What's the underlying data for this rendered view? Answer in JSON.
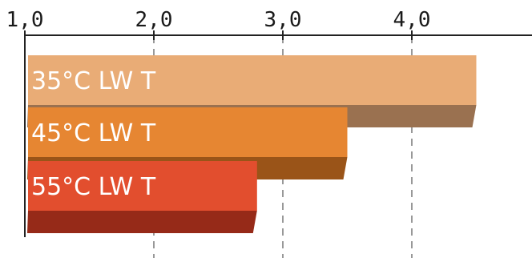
{
  "chart_data": {
    "type": "bar",
    "orientation": "horizontal",
    "style": "3d",
    "grid": "vertical dashed",
    "xlim": [
      1.0,
      4.85
    ],
    "x_ticks": [
      {
        "value": 1.0,
        "label": "1,0"
      },
      {
        "value": 2.0,
        "label": "2,0"
      },
      {
        "value": 3.0,
        "label": "3,0"
      },
      {
        "value": 4.0,
        "label": "4,0"
      }
    ],
    "categories": [
      "35°C   LW T",
      "45°C   LW T",
      "55°C   LW T"
    ],
    "values": [
      4.5,
      3.5,
      2.8
    ],
    "colors": [
      {
        "front": "#E9AC76",
        "side": "#9A7150"
      },
      {
        "front": "#E68632",
        "side": "#9A5418"
      },
      {
        "front": "#E24E2E",
        "side": "#962A18"
      }
    ]
  }
}
